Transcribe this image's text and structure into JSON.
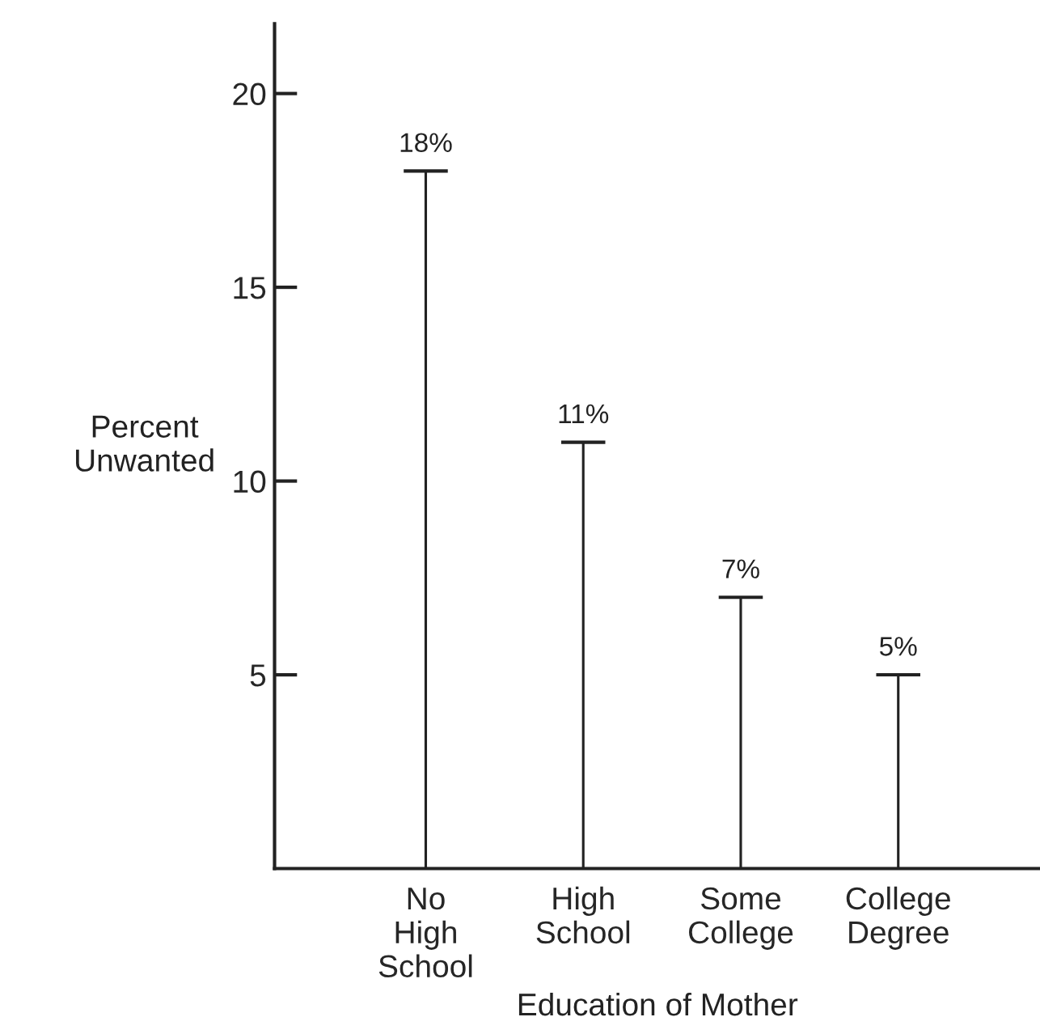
{
  "chart_data": {
    "type": "bar",
    "xlabel": "Education of Mother",
    "ylabel": "Percent\nUnwanted",
    "categories": [
      "No\nHigh\nSchool",
      "High\nSchool",
      "Some\nCollege",
      "College\nDegree"
    ],
    "values": [
      18,
      11,
      7,
      5
    ],
    "value_labels": [
      "18%",
      "11%",
      "7%",
      "5%"
    ],
    "color": "#222222",
    "ylim": [
      0,
      21.8
    ],
    "yticks": [
      5,
      10,
      15,
      20
    ],
    "grid": false
  }
}
